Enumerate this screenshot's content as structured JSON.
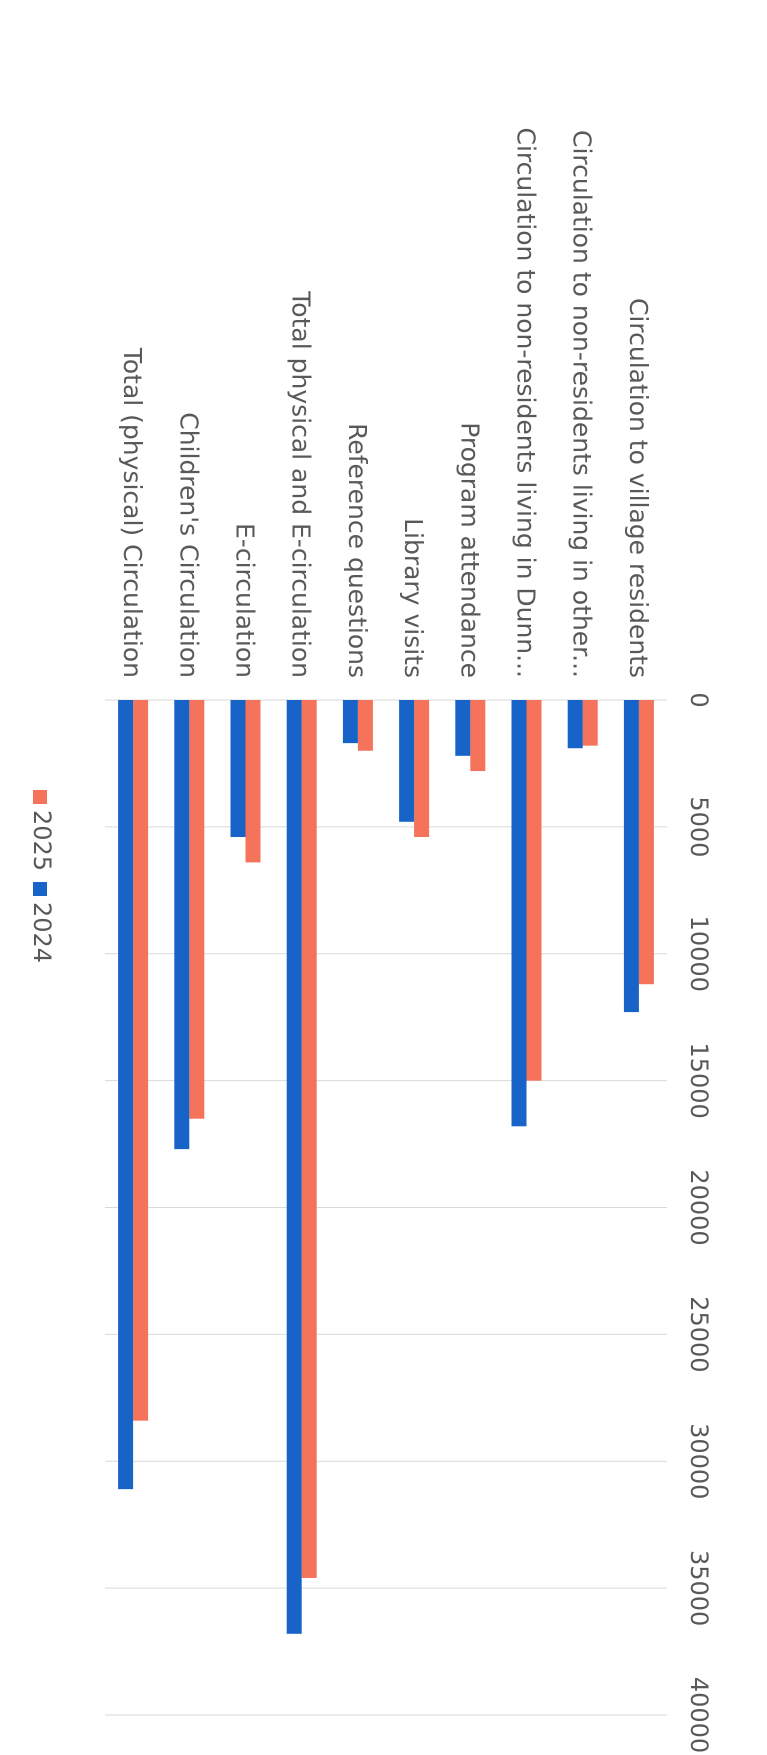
{
  "chart_data": {
    "type": "bar",
    "orientation": "horizontal",
    "title": "",
    "xlabel": "",
    "ylabel": "",
    "categories": [
      "Circulation to village residents",
      "Circulation to non-residents living in other...",
      "Circulation to non-residents living in Dunn...",
      "Program attendance",
      "Library visits",
      "Reference questions",
      "Total physical and E-circulation",
      "E-circulation",
      "Children's Circulation",
      "Total (physical) Circulation"
    ],
    "series": [
      {
        "name": "2025",
        "color": "#f4735a",
        "values": [
          11200,
          1800,
          15000,
          2800,
          5400,
          2000,
          34600,
          6400,
          16500,
          28400
        ]
      },
      {
        "name": "2024",
        "color": "#1763c8",
        "values": [
          12300,
          1900,
          16800,
          2200,
          4800,
          1700,
          36800,
          5400,
          17700,
          31100
        ]
      }
    ],
    "xlim": [
      0,
      40000
    ],
    "ticks": [
      0,
      5000,
      10000,
      15000,
      20000,
      25000,
      30000,
      35000,
      40000
    ],
    "grid": true,
    "legend": {
      "position": "bottom",
      "entries": [
        "2025",
        "2024"
      ]
    }
  }
}
